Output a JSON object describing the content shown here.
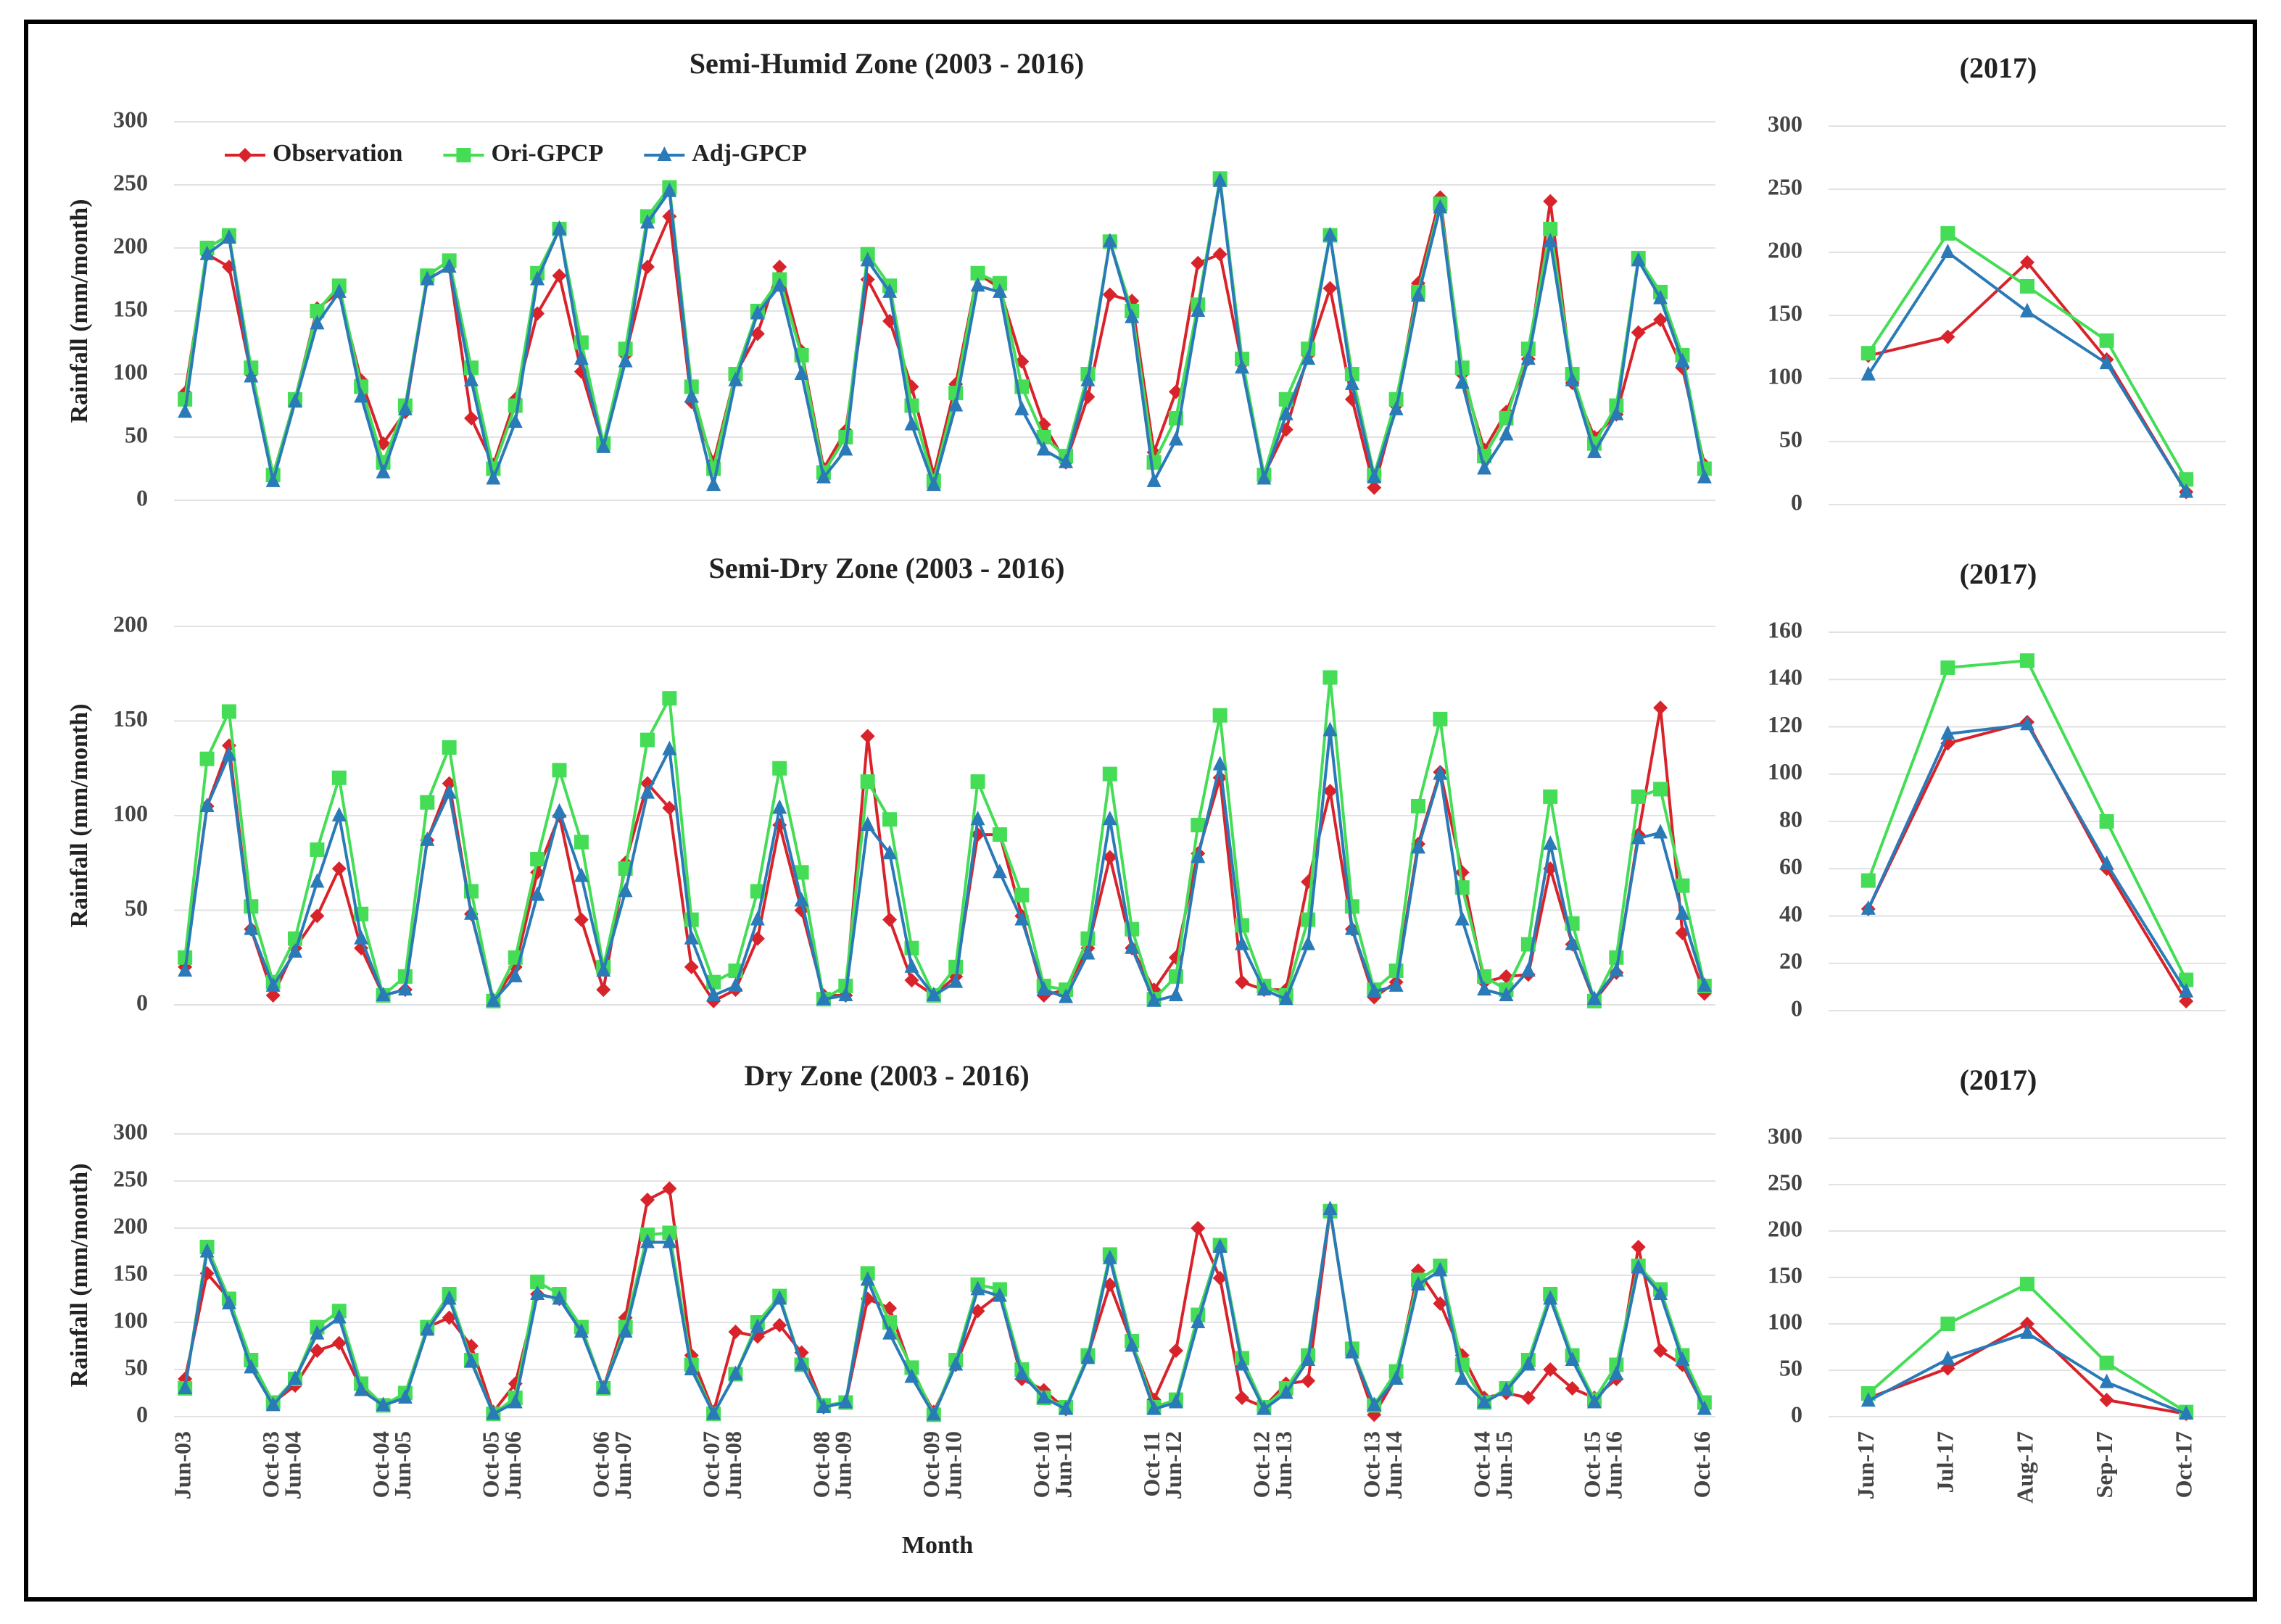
{
  "chart_data": [
    {
      "type": "line",
      "title": "Semi-Humid Zone (2003 - 2016)",
      "y_label": "Rainfall (mm/month)",
      "ylim": [
        0,
        300
      ],
      "yticks": [
        0,
        50,
        100,
        150,
        200,
        250,
        300
      ],
      "grid": true,
      "legend": "upper left",
      "series": [
        {
          "name": "Observation",
          "color": "#d9232b",
          "marker": "diamond",
          "values": [
            85,
            195,
            185,
            100,
            20,
            80,
            152,
            165,
            95,
            45,
            70,
            175,
            185,
            65,
            28,
            80,
            148,
            178,
            102,
            43,
            115,
            185,
            225,
            78,
            30,
            100,
            132,
            185,
            118,
            25,
            55,
            175,
            142,
            90,
            20,
            92,
            180,
            168,
            110,
            60,
            30,
            82,
            163,
            158,
            38,
            86,
            188,
            195,
            108,
            20,
            56,
            115,
            168,
            80,
            10,
            75,
            172,
            240,
            100,
            40,
            70,
            112,
            237,
            93,
            50,
            68,
            133,
            143,
            105,
            28
          ]
        },
        {
          "name": "Ori-GPCP",
          "color": "#44dd55",
          "marker": "square",
          "values": [
            80,
            200,
            210,
            105,
            20,
            80,
            150,
            170,
            90,
            30,
            75,
            178,
            190,
            105,
            25,
            75,
            180,
            215,
            125,
            45,
            120,
            225,
            248,
            90,
            25,
            100,
            150,
            175,
            115,
            22,
            50,
            195,
            170,
            75,
            15,
            85,
            180,
            172,
            90,
            50,
            35,
            100,
            205,
            150,
            30,
            65,
            155,
            255,
            112,
            20,
            80,
            120,
            210,
            100,
            20,
            80,
            165,
            235,
            105,
            35,
            65,
            120,
            215,
            100,
            45,
            75,
            192,
            165,
            115,
            25
          ]
        },
        {
          "name": "Adj-GPCP",
          "color": "#2a7ab8",
          "marker": "triangle",
          "values": [
            70,
            195,
            208,
            98,
            15,
            78,
            140,
            165,
            82,
            22,
            72,
            175,
            185,
            95,
            17,
            62,
            175,
            215,
            112,
            42,
            110,
            220,
            245,
            82,
            12,
            95,
            148,
            170,
            100,
            18,
            40,
            190,
            165,
            60,
            12,
            75,
            170,
            165,
            72,
            40,
            30,
            95,
            205,
            145,
            15,
            48,
            150,
            253,
            105,
            17,
            68,
            112,
            210,
            92,
            18,
            72,
            162,
            232,
            93,
            25,
            52,
            112,
            205,
            95,
            38,
            68,
            190,
            160,
            110,
            18
          ]
        }
      ]
    },
    {
      "type": "line",
      "title": "(2017)",
      "ylim": [
        0,
        300
      ],
      "yticks": [
        0,
        50,
        100,
        150,
        200,
        250,
        300
      ],
      "grid": true,
      "series": [
        {
          "color": "#d9232b",
          "marker": "diamond",
          "values": [
            118,
            133,
            192,
            115,
            10
          ]
        },
        {
          "color": "#44dd55",
          "marker": "square",
          "values": [
            120,
            215,
            173,
            130,
            20
          ]
        },
        {
          "color": "#2a7ab8",
          "marker": "triangle",
          "values": [
            103,
            200,
            153,
            112,
            10
          ]
        }
      ]
    },
    {
      "type": "line",
      "title": "Semi-Dry Zone (2003 - 2016)",
      "y_label": "Rainfall (mm/month)",
      "ylim": [
        0,
        200
      ],
      "yticks": [
        0,
        50,
        100,
        150,
        200
      ],
      "grid": true,
      "series": [
        {
          "color": "#d9232b",
          "marker": "diamond",
          "values": [
            20,
            105,
            137,
            40,
            5,
            30,
            47,
            72,
            30,
            5,
            8,
            87,
            117,
            48,
            2,
            20,
            70,
            100,
            45,
            8,
            75,
            117,
            104,
            20,
            2,
            8,
            35,
            95,
            50,
            5,
            5,
            142,
            45,
            13,
            5,
            15,
            90,
            90,
            47,
            5,
            8,
            30,
            78,
            30,
            8,
            25,
            80,
            120,
            12,
            8,
            8,
            65,
            113,
            40,
            4,
            12,
            85,
            123,
            70,
            12,
            15,
            16,
            72,
            32,
            2,
            17,
            90,
            157,
            38,
            6
          ]
        },
        {
          "color": "#44dd55",
          "marker": "square",
          "values": [
            25,
            130,
            155,
            52,
            12,
            35,
            82,
            120,
            48,
            5,
            15,
            107,
            136,
            60,
            2,
            25,
            77,
            124,
            86,
            20,
            72,
            140,
            162,
            45,
            12,
            18,
            60,
            125,
            70,
            3,
            10,
            118,
            98,
            30,
            5,
            20,
            118,
            90,
            58,
            10,
            8,
            35,
            122,
            40,
            3,
            15,
            95,
            153,
            42,
            10,
            5,
            45,
            173,
            52,
            8,
            18,
            105,
            151,
            62,
            15,
            8,
            32,
            110,
            43,
            2,
            25,
            110,
            114,
            63,
            10
          ]
        },
        {
          "color": "#2a7ab8",
          "marker": "triangle",
          "values": [
            18,
            105,
            132,
            40,
            10,
            28,
            65,
            100,
            35,
            5,
            8,
            87,
            112,
            48,
            2,
            15,
            58,
            102,
            68,
            18,
            60,
            112,
            135,
            35,
            5,
            10,
            45,
            104,
            55,
            3,
            5,
            95,
            80,
            20,
            5,
            12,
            98,
            70,
            45,
            8,
            4,
            27,
            98,
            30,
            2,
            5,
            78,
            127,
            32,
            8,
            3,
            32,
            145,
            40,
            7,
            10,
            83,
            122,
            45,
            8,
            5,
            18,
            85,
            32,
            3,
            18,
            88,
            91,
            48,
            10
          ]
        }
      ]
    },
    {
      "type": "line",
      "title": "(2017)",
      "ylim": [
        0,
        160
      ],
      "yticks": [
        0,
        20,
        40,
        60,
        80,
        100,
        120,
        140,
        160
      ],
      "grid": true,
      "series": [
        {
          "color": "#d9232b",
          "marker": "diamond",
          "values": [
            43,
            113,
            122,
            60,
            4
          ]
        },
        {
          "color": "#44dd55",
          "marker": "square",
          "values": [
            55,
            145,
            148,
            80,
            13
          ]
        },
        {
          "color": "#2a7ab8",
          "marker": "triangle",
          "values": [
            43,
            117,
            121,
            62,
            8
          ]
        }
      ]
    },
    {
      "type": "line",
      "title": "Dry Zone (2003 - 2016)",
      "y_label": "Rainfall (mm/month)",
      "x_label": "Month",
      "ylim": [
        0,
        300
      ],
      "yticks": [
        0,
        50,
        100,
        150,
        200,
        250,
        300
      ],
      "grid": true,
      "categories": [
        "Jun-03",
        null,
        null,
        null,
        "Oct-03",
        "Jun-04",
        null,
        null,
        null,
        "Oct-04",
        "Jun-05",
        null,
        null,
        null,
        "Oct-05",
        "Jun-06",
        null,
        null,
        null,
        "Oct-06",
        "Jun-07",
        null,
        null,
        null,
        "Oct-07",
        "Jun-08",
        null,
        null,
        null,
        "Oct-08",
        "Jun-09",
        null,
        null,
        null,
        "Oct-09",
        "Jun-10",
        null,
        null,
        null,
        "Oct-10",
        "Jun-11",
        null,
        null,
        null,
        "Oct-11",
        "Jun-12",
        null,
        null,
        null,
        "Oct-12",
        "Jun-13",
        null,
        null,
        null,
        "Oct-13",
        "Jun-14",
        null,
        null,
        null,
        "Oct-14",
        "Jun-15",
        null,
        null,
        null,
        "Oct-15",
        "Jun-16",
        null,
        null,
        null,
        "Oct-16"
      ],
      "series": [
        {
          "color": "#d9232b",
          "marker": "diamond",
          "values": [
            40,
            152,
            125,
            55,
            15,
            33,
            70,
            78,
            30,
            12,
            22,
            95,
            105,
            75,
            5,
            35,
            130,
            125,
            95,
            30,
            105,
            230,
            242,
            65,
            5,
            90,
            85,
            97,
            68,
            10,
            15,
            125,
            115,
            48,
            5,
            55,
            112,
            130,
            40,
            28,
            8,
            65,
            140,
            78,
            18,
            70,
            200,
            147,
            20,
            10,
            35,
            38,
            218,
            70,
            2,
            42,
            155,
            120,
            65,
            20,
            25,
            20,
            50,
            30,
            20,
            40,
            180,
            70,
            55,
            10
          ]
        },
        {
          "color": "#44dd55",
          "marker": "square",
          "values": [
            30,
            180,
            125,
            60,
            15,
            40,
            95,
            112,
            35,
            12,
            25,
            95,
            130,
            60,
            3,
            20,
            143,
            130,
            95,
            30,
            95,
            193,
            195,
            55,
            3,
            45,
            100,
            128,
            55,
            12,
            15,
            152,
            100,
            52,
            2,
            60,
            140,
            135,
            50,
            20,
            10,
            65,
            172,
            80,
            10,
            18,
            108,
            182,
            62,
            10,
            30,
            65,
            218,
            72,
            12,
            48,
            145,
            160,
            55,
            15,
            30,
            60,
            130,
            65,
            18,
            55,
            160,
            135,
            65,
            15
          ]
        },
        {
          "color": "#2a7ab8",
          "marker": "triangle",
          "values": [
            30,
            175,
            120,
            52,
            12,
            40,
            88,
            105,
            28,
            12,
            20,
            92,
            125,
            58,
            3,
            15,
            130,
            125,
            90,
            30,
            90,
            185,
            185,
            50,
            3,
            45,
            95,
            125,
            55,
            10,
            15,
            145,
            88,
            42,
            2,
            55,
            135,
            128,
            45,
            20,
            8,
            62,
            168,
            75,
            8,
            15,
            100,
            180,
            55,
            8,
            25,
            60,
            220,
            68,
            12,
            40,
            140,
            155,
            40,
            15,
            28,
            55,
            125,
            60,
            15,
            45,
            158,
            130,
            60,
            8
          ]
        }
      ]
    },
    {
      "type": "line",
      "title": "(2017)",
      "ylim": [
        0,
        300
      ],
      "yticks": [
        0,
        50,
        100,
        150,
        200,
        250,
        300
      ],
      "grid": true,
      "categories": [
        "Jun-17",
        "Jul-17",
        "Aug-17",
        "Sep-17",
        "Oct-17"
      ],
      "series": [
        {
          "color": "#d9232b",
          "marker": "diamond",
          "values": [
            20,
            52,
            100,
            18,
            3
          ]
        },
        {
          "color": "#44dd55",
          "marker": "square",
          "values": [
            25,
            100,
            143,
            58,
            5
          ]
        },
        {
          "color": "#2a7ab8",
          "marker": "triangle",
          "values": [
            17,
            62,
            90,
            37,
            3
          ]
        }
      ]
    }
  ]
}
